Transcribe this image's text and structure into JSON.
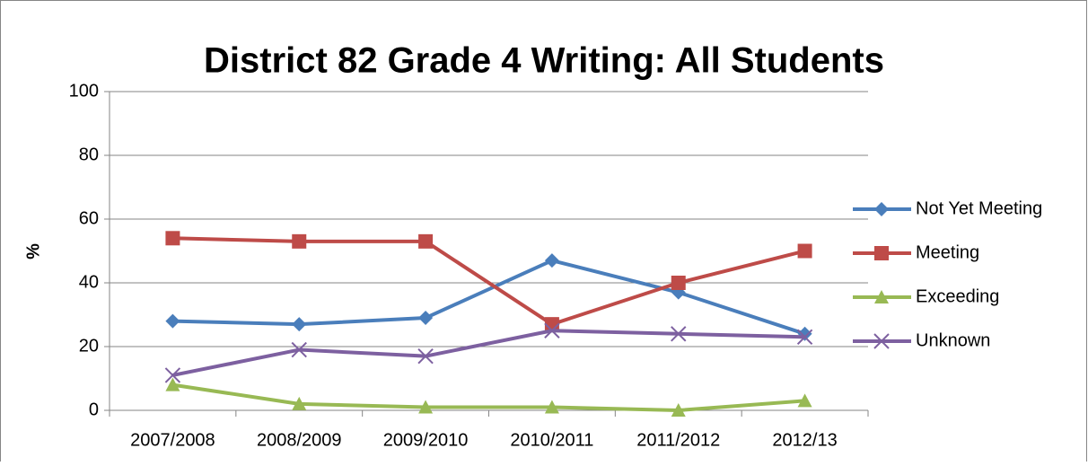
{
  "chart_data": {
    "type": "line",
    "title": "District 82 Grade 4 Writing: All Students",
    "y_label": "%",
    "categories": [
      "2007/2008",
      "2008/2009",
      "2009/2010",
      "2010/2011",
      "2011/2012",
      "2012/13"
    ],
    "series": [
      {
        "name": "Not Yet Meeting",
        "color": "#4a7ebb",
        "marker": "diamond",
        "values": [
          28,
          27,
          29,
          47,
          37,
          24
        ]
      },
      {
        "name": "Meeting",
        "color": "#be4b48",
        "marker": "square",
        "values": [
          54,
          53,
          53,
          27,
          40,
          50
        ]
      },
      {
        "name": "Exceeding",
        "color": "#98b954",
        "marker": "triangle",
        "values": [
          8,
          2,
          1,
          1,
          0,
          3
        ]
      },
      {
        "name": "Unknown",
        "color": "#7d60a0",
        "marker": "x",
        "values": [
          11,
          19,
          17,
          25,
          24,
          23
        ]
      }
    ],
    "ylim": [
      0,
      100
    ],
    "yticks": [
      0,
      20,
      40,
      60,
      80,
      100
    ],
    "grid": true,
    "legend": "right"
  }
}
